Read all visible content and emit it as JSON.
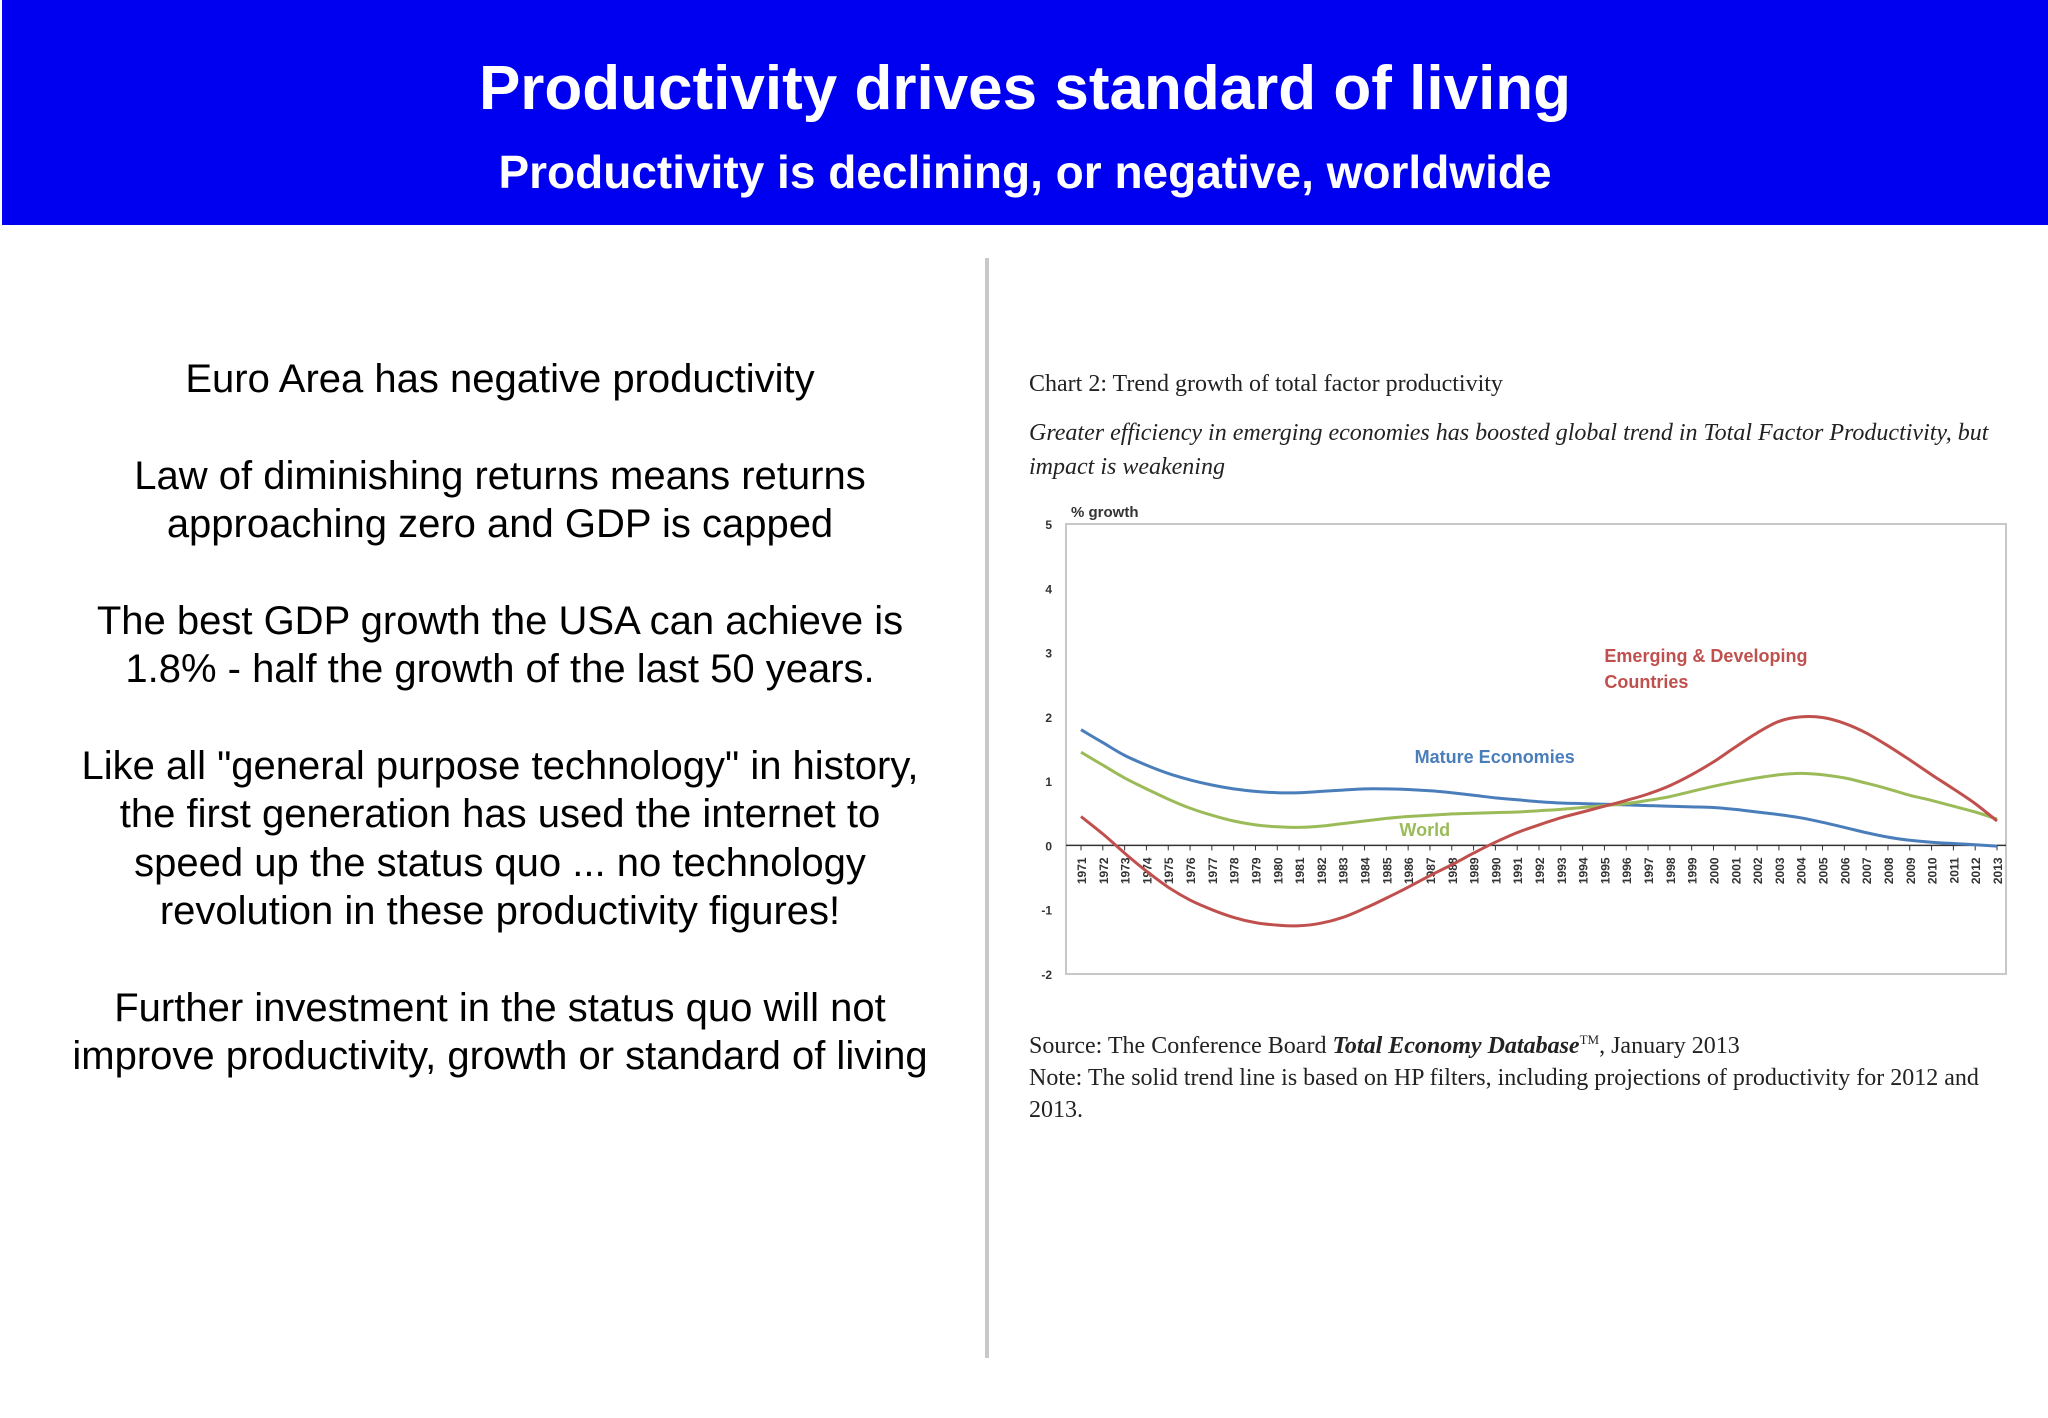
{
  "header": {
    "title": "Productivity drives standard of living",
    "subtitle": "Productivity is declining, or negative, worldwide"
  },
  "left_panel": {
    "paragraphs": [
      "Euro Area has negative productivity",
      "Law of diminishing returns means returns approaching zero and GDP is capped",
      "The best GDP growth the USA can achieve is 1.8% - half the growth of the last 50 years.",
      "Like all \"general purpose technology\" in history, the first generation has used the internet to speed up the status quo ... no technology revolution in these productivity figures!",
      "Further investment in the status quo will not improve productivity, growth or standard of living"
    ]
  },
  "chart_header": {
    "title": "Chart 2: Trend growth of total factor productivity",
    "subtitle": "Greater efficiency in emerging economies has boosted global trend in Total Factor Productivity, but impact is weakening"
  },
  "source": {
    "prefix": "Source: The Conference Board ",
    "database": "Total Economy Database",
    "tm": "TM",
    "suffix": ", January 2013",
    "note": "Note: The solid trend line is based on HP filters, including projections of productivity for 2012 and 2013."
  },
  "chart_data": {
    "type": "line",
    "ylabel": "% growth",
    "ylim": [
      -2,
      5
    ],
    "yticks": [
      5,
      4,
      3,
      2,
      1,
      0,
      -1,
      -2
    ],
    "grid": false,
    "x": [
      1971,
      1972,
      1973,
      1974,
      1975,
      1976,
      1977,
      1978,
      1979,
      1980,
      1981,
      1982,
      1983,
      1984,
      1985,
      1986,
      1987,
      1988,
      1989,
      1990,
      1991,
      1992,
      1993,
      1994,
      1995,
      1996,
      1997,
      1998,
      1999,
      2000,
      2001,
      2002,
      2003,
      2004,
      2005,
      2006,
      2007,
      2008,
      2009,
      2010,
      2011,
      2012,
      2013
    ],
    "series": [
      {
        "name": "Mature Economies",
        "color": "#4a7ebb",
        "values": [
          1.8,
          1.6,
          1.4,
          1.25,
          1.12,
          1.02,
          0.94,
          0.88,
          0.84,
          0.82,
          0.82,
          0.84,
          0.86,
          0.88,
          0.88,
          0.87,
          0.85,
          0.82,
          0.78,
          0.74,
          0.71,
          0.68,
          0.66,
          0.65,
          0.64,
          0.63,
          0.62,
          0.61,
          0.6,
          0.59,
          0.56,
          0.52,
          0.48,
          0.43,
          0.36,
          0.28,
          0.2,
          0.13,
          0.08,
          0.05,
          0.03,
          0.01,
          -0.01
        ]
      },
      {
        "name": "World",
        "color": "#9bbb59",
        "values": [
          1.45,
          1.25,
          1.05,
          0.88,
          0.72,
          0.58,
          0.47,
          0.38,
          0.32,
          0.29,
          0.28,
          0.3,
          0.34,
          0.38,
          0.42,
          0.45,
          0.47,
          0.49,
          0.5,
          0.51,
          0.52,
          0.54,
          0.56,
          0.59,
          0.62,
          0.65,
          0.7,
          0.76,
          0.84,
          0.92,
          0.99,
          1.05,
          1.1,
          1.12,
          1.1,
          1.05,
          0.97,
          0.88,
          0.78,
          0.7,
          0.61,
          0.52,
          0.41
        ]
      },
      {
        "name": "Emerging & Developing Countries",
        "color": "#c0504d",
        "values": [
          0.45,
          0.18,
          -0.12,
          -0.4,
          -0.65,
          -0.85,
          -1.0,
          -1.12,
          -1.2,
          -1.24,
          -1.25,
          -1.21,
          -1.12,
          -0.98,
          -0.82,
          -0.65,
          -0.47,
          -0.3,
          -0.12,
          0.05,
          0.2,
          0.32,
          0.43,
          0.52,
          0.61,
          0.7,
          0.8,
          0.93,
          1.1,
          1.3,
          1.53,
          1.75,
          1.93,
          2.0,
          1.99,
          1.9,
          1.75,
          1.55,
          1.33,
          1.1,
          0.88,
          0.65,
          0.38
        ]
      }
    ],
    "annotations": [
      {
        "text": "Emerging & Developing",
        "series": "Emerging & Developing Countries"
      },
      {
        "text": "Countries",
        "series": "Emerging & Developing Countries"
      },
      {
        "text": "Mature Economies",
        "series": "Mature Economies"
      },
      {
        "text": "World",
        "series": "World"
      }
    ]
  }
}
